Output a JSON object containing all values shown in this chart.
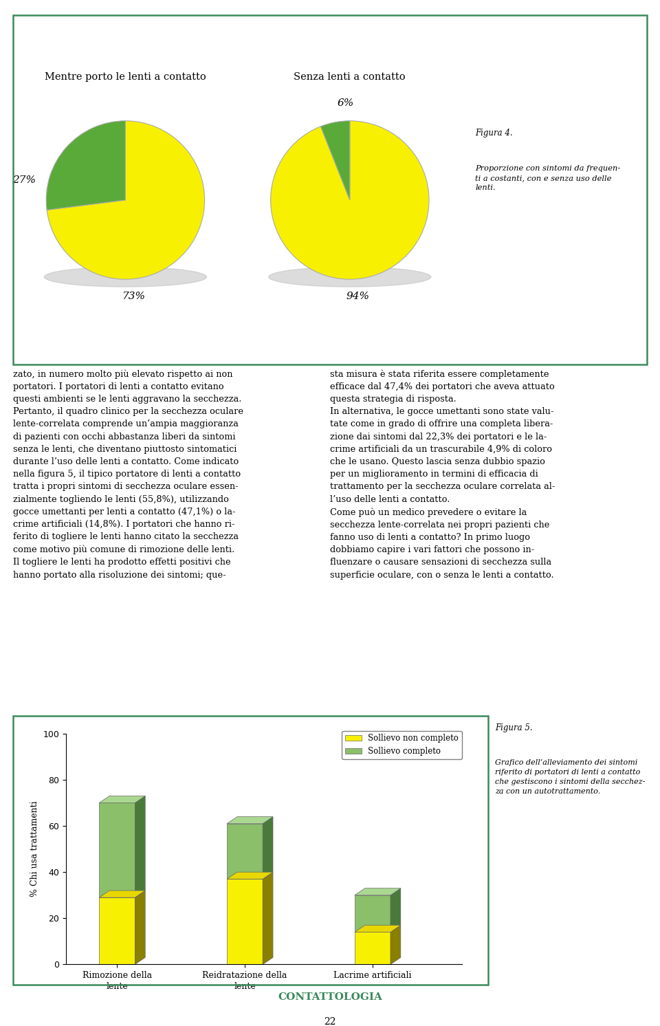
{
  "page_bg": "#ffffff",
  "border_color": "#3a8a5a",
  "border_linewidth": 1.8,
  "pie1_title": "Mentre porto le lenti a contatto",
  "pie1_values": [
    73,
    27
  ],
  "pie1_colors": [
    "#f7f000",
    "#5aaa3a"
  ],
  "pie1_labels": [
    "73%",
    "27%"
  ],
  "pie2_title": "Senza lenti a contatto",
  "pie2_values": [
    94,
    6
  ],
  "pie2_colors": [
    "#f7f000",
    "#5aaa3a"
  ],
  "pie2_labels": [
    "94%",
    "6%"
  ],
  "fig4_label": "Figura 4.",
  "fig4_text": "Proporzione con sintomi da frequen-\nti a costanti, con e senza uso delle\nlenti.",
  "body_text_left": "zato, in numero molto più elevato rispetto ai non\nportatori. I portatori di lenti a contatto evitano\nquesti ambienti se le lenti aggravano la secchezza.\nPertanto, il quadro clinico per la secchezza oculare\nlente-correlata comprende un’ampia maggioranza\ndi pazienti con occhi abbastanza liberi da sintomi\nsenza le lenti, che diventano piuttosto sintomatici\ndurante l’uso delle lenti a contatto. Come indicato\nnella figura 5, il tipico portatore di lenti a contatto\ntratta i propri sintomi di secchezza oculare essen-\nzialmente togliendo le lenti (55,8%), utilizzando\ngocce umettanti per lenti a contatto (47,1%) o la-\ncrime artificiali (14,8%). I portatori che hanno ri-\nferito di togliere le lenti hanno citato la secchezza\ncome motivo più comune di rimozione delle lenti.\nIl togliere le lenti ha prodotto effetti positivi che\nhanno portato alla risoluzione dei sintomi; que-",
  "body_text_right": "sta misura è stata riferita essere completamente\nefficace dal 47,4% dei portatori che aveva attuato\nquesta strategia di risposta.\nIn alternativa, le gocce umettanti sono state valu-\ntate come in grado di offrire una completa libera-\nzione dai sintomi dal 22,3% dei portatori e le la-\ncrime artificiali da un trascurabile 4,9% di coloro\nche le usano. Questo lascia senza dubbio spazio\nper un miglioramento in termini di efficacia di\ntrattamento per la secchezza oculare correlata al-\nl’uso delle lenti a contatto.\nCome può un medico prevedere o evitare la\nsecchezza lente-correlata nei propri pazienti che\nfanno uso di lenti a contatto? In primo luogo\ndobbiamo capire i vari fattori che possono in-\nfluenzare o causare sensazioni di secchezza sulla\nsuperficie oculare, con o senza le lenti a contatto.",
  "bar_categories": [
    "Rimozione della\nlente",
    "Reidratazione della\nlente",
    "Lacrime artificiali"
  ],
  "bar_non_completo": [
    29,
    37,
    14
  ],
  "bar_completo": [
    41,
    24,
    16
  ],
  "bar_color_nc_light": "#f7f000",
  "bar_color_c_light": "#8bbf6a",
  "bar_color_nc_dark": "#8a8000",
  "bar_color_c_dark": "#4a7a3a",
  "bar_ylabel": "% Chi usa trattamenti",
  "bar_legend_nc": "Sollievo non completo",
  "bar_legend_c": "Sollievo completo",
  "bar_ylim": [
    0,
    100
  ],
  "bar_yticks": [
    0,
    20,
    40,
    60,
    80,
    100
  ],
  "fig5_label": "Figura 5.",
  "fig5_text": "Grafico dell’alleviamento dei sintomi\nriferito di portatori di lenti a contatto\nche gestiscono i sintomi della secchez-\nza con un autotrattamento.",
  "footer_text": "CONTATTOLOGIA",
  "page_number": "22",
  "shadow_color": "#bbbbbb"
}
